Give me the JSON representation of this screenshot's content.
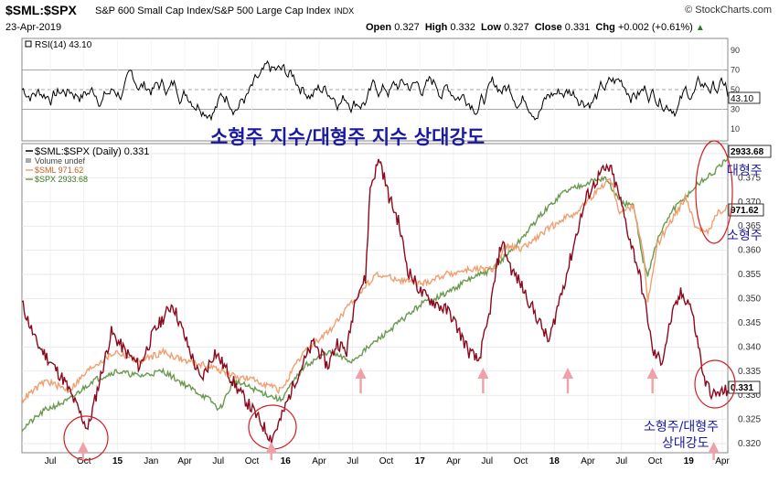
{
  "header": {
    "symbol": "$SML:$SPX",
    "description": "S&P 600 Small Cap Index/S&P 500 Large Cap Index",
    "exchange": "INDX",
    "logo": "© StockCharts.com",
    "date": "23-Apr-2019",
    "open_label": "Open",
    "open": "0.327",
    "high_label": "High",
    "high": "0.332",
    "low_label": "Low",
    "low": "0.327",
    "close_label": "Close",
    "close": "0.331",
    "chg_label": "Chg",
    "chg": "+0.002 (+0.61%)"
  },
  "colors": {
    "ratio": "#8b0a1e",
    "sml": "#f0a070",
    "spx": "#6a9a50",
    "rsi": "#000000",
    "annotation": "#1a1aa0",
    "circle": "#d02020",
    "arrow": "#f0a0a8"
  },
  "chart_data": [
    {
      "type": "line",
      "title": "RSI(14) 43.10",
      "series": [
        {
          "name": "RSI(14)",
          "last": 43.1
        }
      ],
      "y_ticks": [
        90,
        70,
        50,
        30,
        10
      ],
      "ylim": [
        0,
        100
      ],
      "reference_lines": [
        70,
        50,
        30
      ],
      "value_tag": "43.10"
    },
    {
      "type": "line",
      "legend": [
        {
          "key": "ratio",
          "label": "$SML:$SPX (Daily) 0.331"
        },
        {
          "key": "vol",
          "label": "Volume undef"
        },
        {
          "key": "sml",
          "label": "$SML 971.62"
        },
        {
          "key": "spx",
          "label": "$SPX 2933.68"
        }
      ],
      "y_ticks": [
        "0.320",
        "0.325",
        "0.330",
        "0.335",
        "0.340",
        "0.345",
        "0.350",
        "0.355",
        "0.360",
        "0.365",
        "0.370",
        "0.375",
        "0.380"
      ],
      "ylim": [
        0.3185,
        0.3815
      ],
      "x_tick_labels": [
        "Jul",
        "Oct",
        "15",
        "Jan",
        "Apr",
        "Jul",
        "Oct",
        "16",
        "Apr",
        "Jul",
        "Oct",
        "17",
        "Apr",
        "Jul",
        "Oct",
        "18",
        "Apr",
        "Jul",
        "Oct",
        "19",
        "Apr"
      ],
      "series": [
        {
          "name": "$SML:$SPX",
          "key": "ratio",
          "last": 0.331,
          "points": [
            [
              0,
              0.349
            ],
            [
              3,
              0.341
            ],
            [
              6,
              0.337
            ],
            [
              9,
              0.333
            ],
            [
              12,
              0.327
            ],
            [
              14,
              0.323
            ],
            [
              16,
              0.331
            ],
            [
              19,
              0.343
            ],
            [
              22,
              0.339
            ],
            [
              25,
              0.336
            ],
            [
              28,
              0.343
            ],
            [
              32,
              0.349
            ],
            [
              35,
              0.341
            ],
            [
              38,
              0.333
            ],
            [
              41,
              0.339
            ],
            [
              43,
              0.336
            ],
            [
              46,
              0.331
            ],
            [
              49,
              0.327
            ],
            [
              51,
              0.324
            ],
            [
              53,
              0.321
            ],
            [
              55,
              0.325
            ],
            [
              58,
              0.333
            ],
            [
              62,
              0.341
            ],
            [
              65,
              0.336
            ],
            [
              67,
              0.341
            ],
            [
              69,
              0.339
            ],
            [
              71,
              0.351
            ],
            [
              73,
              0.354
            ],
            [
              74,
              0.373
            ],
            [
              76,
              0.379
            ],
            [
              78,
              0.371
            ],
            [
              80,
              0.366
            ],
            [
              82,
              0.356
            ],
            [
              85,
              0.351
            ],
            [
              88,
              0.349
            ],
            [
              91,
              0.347
            ],
            [
              93,
              0.343
            ],
            [
              95,
              0.339
            ],
            [
              97,
              0.337
            ],
            [
              99,
              0.345
            ],
            [
              101,
              0.357
            ],
            [
              102,
              0.362
            ],
            [
              104,
              0.356
            ],
            [
              106,
              0.353
            ],
            [
              108,
              0.349
            ],
            [
              110,
              0.345
            ],
            [
              112,
              0.341
            ],
            [
              114,
              0.349
            ],
            [
              116,
              0.356
            ],
            [
              118,
              0.364
            ],
            [
              120,
              0.371
            ],
            [
              123,
              0.376
            ],
            [
              125,
              0.377
            ],
            [
              127,
              0.371
            ],
            [
              129,
              0.363
            ],
            [
              131,
              0.356
            ],
            [
              133,
              0.346
            ],
            [
              134,
              0.339
            ],
            [
              136,
              0.337
            ],
            [
              138,
              0.346
            ],
            [
              140,
              0.351
            ],
            [
              142,
              0.349
            ],
            [
              144,
              0.339
            ],
            [
              145,
              0.333
            ],
            [
              147,
              0.33
            ],
            [
              150,
              0.331
            ]
          ]
        },
        {
          "name": "$SML",
          "key": "sml",
          "last": 971.62,
          "points": [
            [
              0,
              0.329
            ],
            [
              5,
              0.333
            ],
            [
              10,
              0.331
            ],
            [
              15,
              0.336
            ],
            [
              20,
              0.339
            ],
            [
              25,
              0.337
            ],
            [
              30,
              0.339
            ],
            [
              35,
              0.337
            ],
            [
              40,
              0.336
            ],
            [
              45,
              0.334
            ],
            [
              50,
              0.333
            ],
            [
              55,
              0.331
            ],
            [
              60,
              0.339
            ],
            [
              65,
              0.343
            ],
            [
              70,
              0.349
            ],
            [
              75,
              0.355
            ],
            [
              80,
              0.354
            ],
            [
              85,
              0.353
            ],
            [
              90,
              0.355
            ],
            [
              95,
              0.356
            ],
            [
              100,
              0.356
            ],
            [
              103,
              0.361
            ],
            [
              106,
              0.36
            ],
            [
              110,
              0.363
            ],
            [
              114,
              0.366
            ],
            [
              118,
              0.368
            ],
            [
              122,
              0.372
            ],
            [
              125,
              0.375
            ],
            [
              127,
              0.368
            ],
            [
              130,
              0.369
            ],
            [
              132,
              0.36
            ],
            [
              133,
              0.349
            ],
            [
              135,
              0.361
            ],
            [
              138,
              0.366
            ],
            [
              141,
              0.371
            ],
            [
              143,
              0.365
            ],
            [
              146,
              0.364
            ],
            [
              148,
              0.368
            ],
            [
              150,
              0.369
            ]
          ]
        },
        {
          "name": "$SPX",
          "key": "spx",
          "last": 2933.68,
          "points": [
            [
              0,
              0.323
            ],
            [
              5,
              0.327
            ],
            [
              10,
              0.329
            ],
            [
              15,
              0.333
            ],
            [
              20,
              0.335
            ],
            [
              25,
              0.334
            ],
            [
              30,
              0.335
            ],
            [
              35,
              0.332
            ],
            [
              40,
              0.329
            ],
            [
              42,
              0.327
            ],
            [
              45,
              0.333
            ],
            [
              50,
              0.331
            ],
            [
              55,
              0.329
            ],
            [
              60,
              0.336
            ],
            [
              65,
              0.339
            ],
            [
              70,
              0.337
            ],
            [
              75,
              0.341
            ],
            [
              80,
              0.345
            ],
            [
              85,
              0.349
            ],
            [
              90,
              0.351
            ],
            [
              95,
              0.354
            ],
            [
              100,
              0.356
            ],
            [
              105,
              0.361
            ],
            [
              110,
              0.367
            ],
            [
              115,
              0.372
            ],
            [
              120,
              0.374
            ],
            [
              124,
              0.375
            ],
            [
              127,
              0.37
            ],
            [
              130,
              0.369
            ],
            [
              132,
              0.358
            ],
            [
              133,
              0.355
            ],
            [
              135,
              0.362
            ],
            [
              138,
              0.368
            ],
            [
              141,
              0.371
            ],
            [
              144,
              0.374
            ],
            [
              147,
              0.376
            ],
            [
              150,
              0.379
            ]
          ]
        }
      ],
      "value_tags": {
        "spx": "2933.68",
        "sml": "971.62",
        "ratio": "0.331"
      }
    }
  ],
  "annotations": {
    "main_title": "소형주 지수/대형주 지수 상대강도",
    "large_cap": "대형주",
    "small_cap": "소형주",
    "bottom_line1": "소형주/대형주",
    "bottom_line2": "상대강도"
  }
}
